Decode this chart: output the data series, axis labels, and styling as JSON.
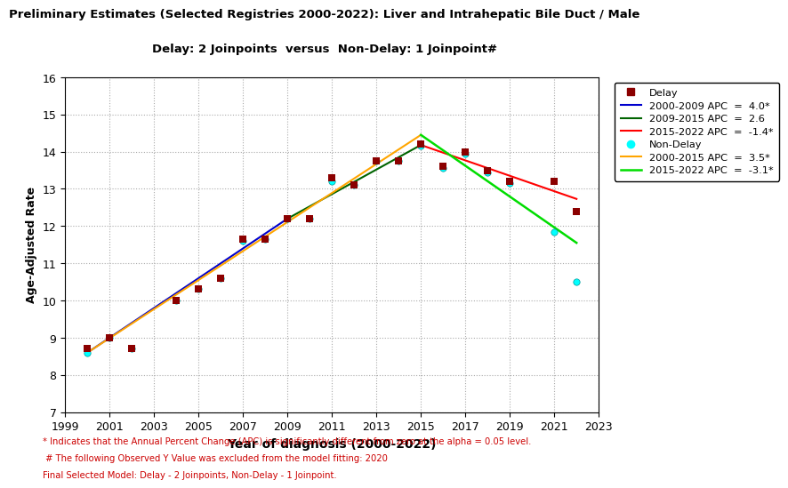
{
  "title_line1": "Preliminary Estimates (Selected Registries 2000-2022): Liver and Intrahepatic Bile Duct / Male",
  "title_line2": "Delay: 2 Joinpoints  versus  Non-Delay: 1 Joinpoint#",
  "xlabel": "Year of diagnosis (2000-2022)",
  "ylabel": "Age-Adjusted Rate",
  "xlim": [
    1999,
    2023
  ],
  "ylim": [
    7,
    16
  ],
  "yticks": [
    7,
    8,
    9,
    10,
    11,
    12,
    13,
    14,
    15,
    16
  ],
  "xticks": [
    1999,
    2001,
    2003,
    2005,
    2007,
    2009,
    2011,
    2013,
    2015,
    2017,
    2019,
    2021,
    2023
  ],
  "delay_x": [
    2000,
    2001,
    2002,
    2004,
    2005,
    2006,
    2007,
    2008,
    2009,
    2010,
    2011,
    2012,
    2013,
    2014,
    2015,
    2016,
    2017,
    2018,
    2019,
    2021,
    2022
  ],
  "delay_y": [
    8.7,
    9.0,
    8.7,
    10.0,
    10.3,
    10.6,
    11.65,
    11.65,
    12.2,
    12.2,
    13.3,
    13.1,
    13.75,
    13.75,
    14.2,
    13.6,
    14.0,
    13.5,
    13.2,
    13.2,
    12.4
  ],
  "nondelay_x": [
    2000,
    2001,
    2002,
    2004,
    2005,
    2006,
    2007,
    2008,
    2009,
    2010,
    2011,
    2012,
    2013,
    2014,
    2015,
    2016,
    2017,
    2018,
    2019,
    2021,
    2022
  ],
  "nondelay_y": [
    8.6,
    9.0,
    8.7,
    10.0,
    10.3,
    10.6,
    11.6,
    11.65,
    12.2,
    12.2,
    13.2,
    13.1,
    13.75,
    13.75,
    14.15,
    13.55,
    13.95,
    13.45,
    13.15,
    11.85,
    10.5
  ],
  "delay_color": "#8B0000",
  "nondelay_color": "#00FFFF",
  "blue_line_x": [
    2000,
    2009
  ],
  "blue_line_y": [
    8.6,
    12.2
  ],
  "blue_line_color": "#0000CD",
  "blue_line_label": "2000-2009 APC  =  4.0*",
  "dkgreen_line_x": [
    2009,
    2015
  ],
  "dkgreen_line_y": [
    12.2,
    14.18
  ],
  "dkgreen_line_color": "#006400",
  "dkgreen_line_label": "2009-2015 APC  =  2.6",
  "red_line_x": [
    2015,
    2022
  ],
  "red_line_y": [
    14.18,
    12.73
  ],
  "red_line_color": "#FF0000",
  "red_line_label": "2015-2022 APC  =  -1.4*",
  "orange_line_x": [
    2000,
    2015
  ],
  "orange_line_y": [
    8.6,
    14.45
  ],
  "orange_line_color": "#FFA500",
  "orange_line_label": "2000-2015 APC  =  3.5*",
  "limegreen_line_x": [
    2015,
    2022
  ],
  "limegreen_line_y": [
    14.45,
    11.55
  ],
  "limegreen_line_color": "#00DD00",
  "limegreen_line_label": "2015-2022 APC  =  -3.1*",
  "delay_label": "Delay",
  "nondelay_label": "Non-Delay",
  "footnote1": "* Indicates that the Annual Percent Change (APC) is significantly different from zero at the alpha = 0.05 level.",
  "footnote2": " # The following Observed Y Value was excluded from the model fitting: 2020",
  "footnote3": "Final Selected Model: Delay - 2 Joinpoints, Non-Delay - 1 Joinpoint.",
  "background_color": "#FFFFFF",
  "grid_color": "#AAAAAA"
}
